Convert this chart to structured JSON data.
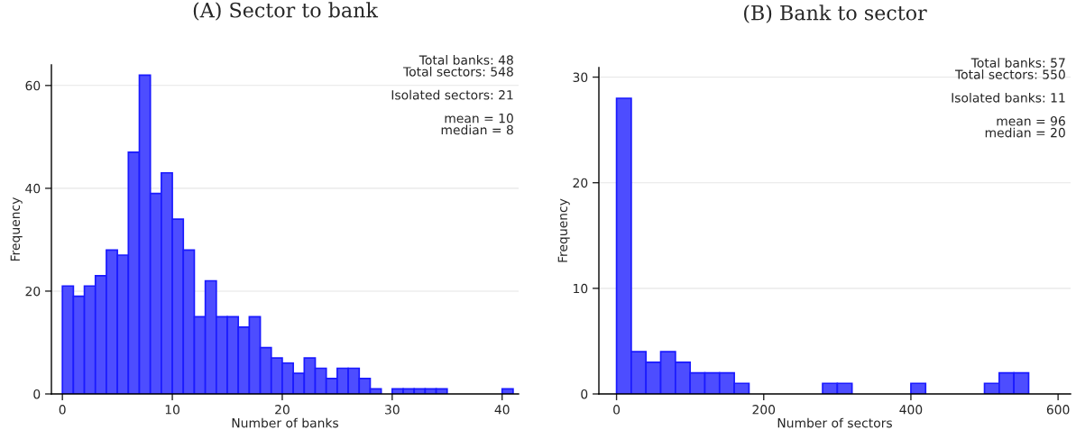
{
  "chart_data": [
    {
      "type": "histogram",
      "title": "(A) Sector to bank",
      "xlabel": "Number of banks",
      "ylabel": "Frequency",
      "bins": [
        0,
        1,
        2,
        3,
        4,
        5,
        6,
        7,
        8,
        9,
        10,
        11,
        12,
        13,
        14,
        15,
        16,
        17,
        18,
        19,
        20,
        21,
        22,
        23,
        24,
        25,
        26,
        27,
        28,
        29,
        30,
        31,
        32,
        33,
        34,
        35,
        36,
        37,
        38,
        39,
        40,
        41
      ],
      "values": [
        21,
        19,
        21,
        23,
        28,
        27,
        47,
        62,
        39,
        43,
        34,
        28,
        15,
        22,
        15,
        15,
        13,
        15,
        9,
        7,
        6,
        4,
        7,
        5,
        3,
        5,
        5,
        3,
        1,
        0,
        1,
        1,
        1,
        1,
        1,
        0,
        0,
        0,
        0,
        0,
        1
      ],
      "color": "#4d4dff",
      "xlim": [
        -1,
        41.5
      ],
      "ylim": [
        0,
        64
      ],
      "xticks": [
        0,
        10,
        20,
        30,
        40
      ],
      "yticks": [
        0,
        20,
        40,
        60
      ],
      "grid": "y",
      "annotations": [
        "Total banks: 48\nTotal sectors: 548",
        "Isolated sectors: 21",
        "mean = 10\nmedian = 8"
      ]
    },
    {
      "type": "histogram",
      "title": "(B) Bank to sector",
      "xlabel": "Number of sectors",
      "ylabel": "Frequency",
      "bins": [
        0,
        20,
        40,
        60,
        80,
        100,
        120,
        140,
        160,
        180,
        200,
        220,
        240,
        260,
        280,
        300,
        320,
        340,
        360,
        380,
        400,
        420,
        440,
        460,
        480,
        500,
        520,
        540,
        560
      ],
      "values": [
        28,
        4,
        3,
        4,
        3,
        2,
        2,
        2,
        1,
        0,
        0,
        0,
        0,
        0,
        1,
        1,
        0,
        0,
        0,
        0,
        1,
        0,
        0,
        0,
        0,
        1,
        2,
        2
      ],
      "color": "#4d4dff",
      "xlim": [
        -24,
        617
      ],
      "ylim": [
        0,
        30.9
      ],
      "xticks": [
        0,
        200,
        400,
        600
      ],
      "yticks": [
        0,
        10,
        20,
        30
      ],
      "grid": "y",
      "annotations": [
        "Total banks: 57\nTotal sectors: 550",
        "Isolated banks: 11",
        "mean = 96\nmedian = 20"
      ]
    }
  ]
}
